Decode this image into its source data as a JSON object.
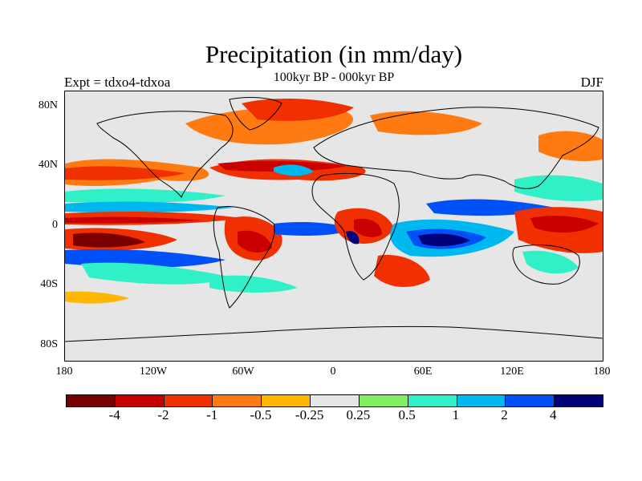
{
  "title": "Precipitation (in mm/day)",
  "subtitle": "100kyr BP - 000kyr BP",
  "left_label": "Expt = tdxo4-tdxoa",
  "right_label": "DJF",
  "y_ticks": [
    "80N",
    "40N",
    "0",
    "40S",
    "80S"
  ],
  "x_ticks": [
    "180",
    "120W",
    "60W",
    "0",
    "60E",
    "120E",
    "180"
  ],
  "colorbar": {
    "colors": [
      "#7a0000",
      "#c80000",
      "#f03000",
      "#ff7a10",
      "#ffb800",
      "#e6e6e6",
      "#80f060",
      "#30f0c8",
      "#00b8f0",
      "#0050f8",
      "#00007a"
    ],
    "labels": [
      "-4",
      "-2",
      "-1",
      "-0.5",
      "-0.25",
      "0.25",
      "0.5",
      "1",
      "2",
      "4"
    ]
  }
}
